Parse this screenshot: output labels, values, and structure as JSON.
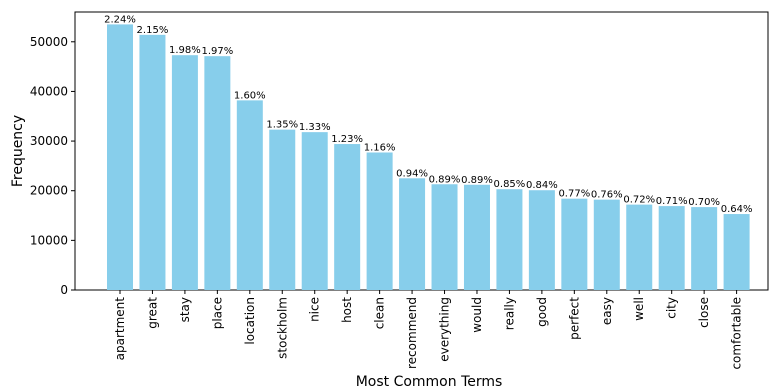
{
  "chart_data": {
    "type": "bar",
    "title": "",
    "xlabel": "Most Common Terms",
    "ylabel": "Frequency",
    "ylim": [
      0,
      56000
    ],
    "yticks": [
      0,
      10000,
      20000,
      30000,
      40000,
      50000
    ],
    "grid": false,
    "bar_color": "#87CEEB",
    "categories": [
      "apartment",
      "great",
      "stay",
      "place",
      "location",
      "stockholm",
      "nice",
      "host",
      "clean",
      "recommend",
      "everything",
      "would",
      "really",
      "good",
      "perfect",
      "easy",
      "well",
      "city",
      "close",
      "comfortable"
    ],
    "values": [
      53500,
      51400,
      47300,
      47100,
      38200,
      32300,
      31800,
      29400,
      27700,
      22500,
      21300,
      21200,
      20300,
      20100,
      18400,
      18200,
      17200,
      16900,
      16700,
      15300
    ],
    "data_labels": [
      "2.24%",
      "2.15%",
      "1.98%",
      "1.97%",
      "1.60%",
      "1.35%",
      "1.33%",
      "1.23%",
      "1.16%",
      "0.94%",
      "0.89%",
      "0.89%",
      "0.85%",
      "0.84%",
      "0.77%",
      "0.76%",
      "0.72%",
      "0.71%",
      "0.70%",
      "0.64%"
    ]
  }
}
